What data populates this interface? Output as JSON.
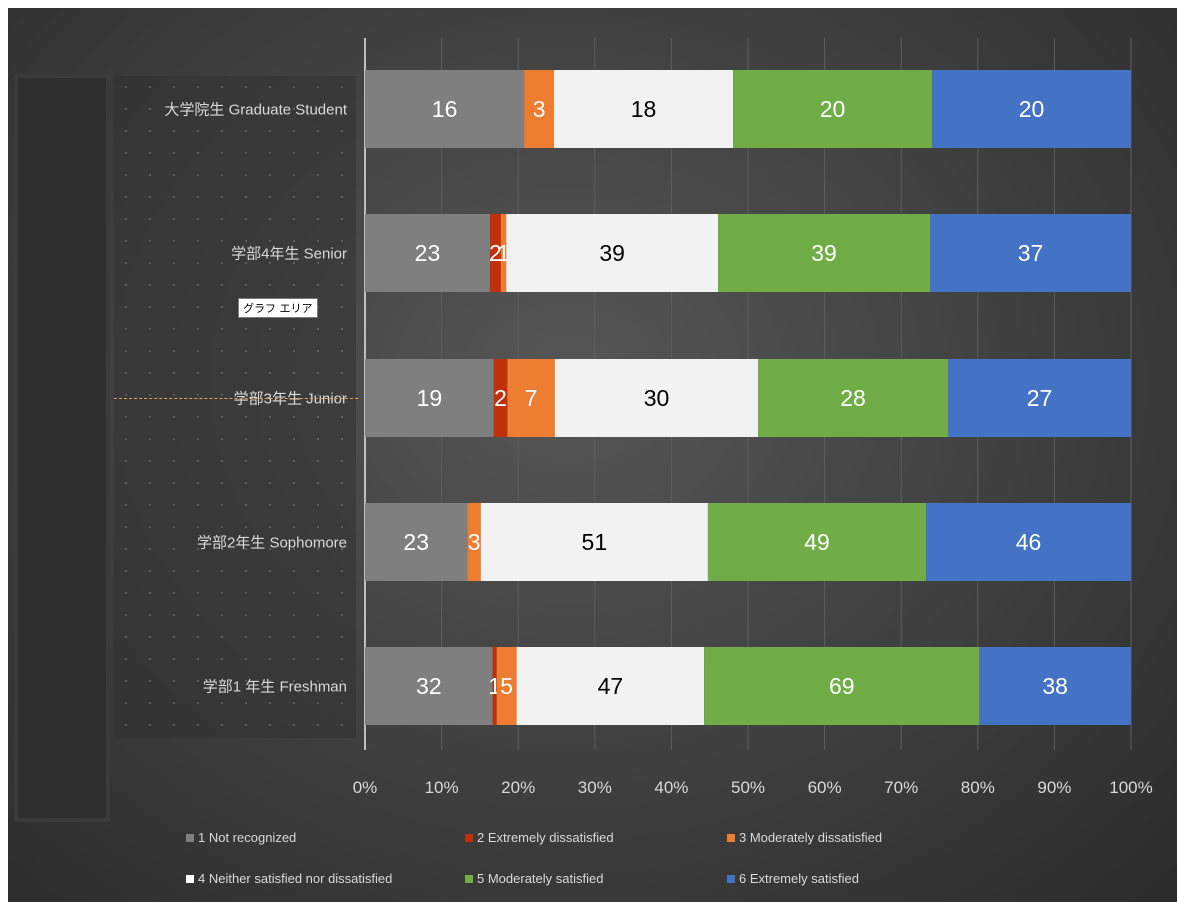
{
  "tooltip": "グラフ エリア",
  "chart_data": {
    "type": "bar",
    "orientation": "horizontal",
    "stacked": "percent",
    "title": "",
    "xlabel": "",
    "ylabel": "",
    "xlim": [
      0,
      100
    ],
    "grid": true,
    "legend_position": "bottom",
    "x_ticks": [
      "0%",
      "10%",
      "20%",
      "30%",
      "40%",
      "50%",
      "60%",
      "70%",
      "80%",
      "90%",
      "100%"
    ],
    "categories": [
      "大学院生  Graduate Student",
      "学部4年生  Senior",
      "学部3年生  Junior",
      "学部2年生  Sophomore",
      "学部1 年生  Freshman"
    ],
    "series": [
      {
        "name": "1 Not recognized",
        "color": "#7f7f7f",
        "label_color": "#ffffff",
        "values": [
          16,
          23,
          19,
          23,
          32
        ]
      },
      {
        "name": "2 Extremely dissatisfied",
        "color": "#c0300a",
        "label_color": "#ffffff",
        "values": [
          0,
          2,
          2,
          0,
          1
        ]
      },
      {
        "name": "3 Moderately dissatisfied",
        "color": "#ed7d31",
        "label_color": "#ffffff",
        "values": [
          3,
          1,
          7,
          3,
          5
        ]
      },
      {
        "name": "4 Neither satisfied nor dissatisfied",
        "color": "#f2f2f2",
        "label_color": "#000000",
        "values": [
          18,
          39,
          30,
          51,
          47
        ]
      },
      {
        "name": "5 Moderately satisfied",
        "color": "#70ad47",
        "label_color": "#ffffff",
        "values": [
          20,
          39,
          28,
          49,
          69
        ]
      },
      {
        "name": "6 Extremely satisfied",
        "color": "#4472c4",
        "label_color": "#ffffff",
        "values": [
          20,
          37,
          27,
          46,
          38
        ]
      }
    ]
  }
}
